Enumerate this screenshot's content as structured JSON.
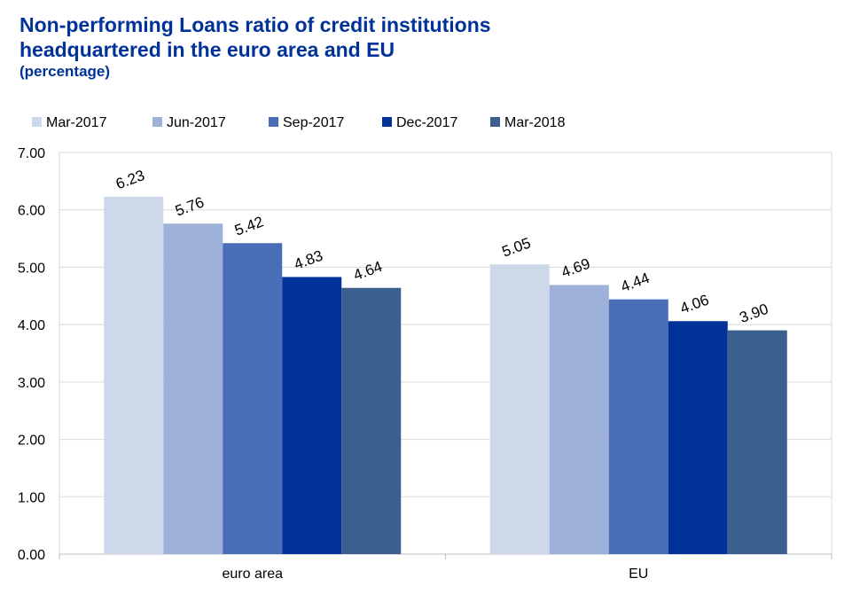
{
  "title": {
    "line1": "Non-performing Loans ratio of credit institutions",
    "line2": "headquartered in the euro area and EU",
    "subtitle": "(percentage)"
  },
  "chart_data": {
    "type": "bar",
    "title": "Non-performing Loans ratio of credit institutions headquartered in the euro area and EU",
    "subtitle": "(percentage)",
    "categories": [
      "euro area",
      "EU"
    ],
    "series": [
      {
        "name": "Mar-2017",
        "color": "#CDD8EA",
        "values": [
          6.23,
          5.05
        ]
      },
      {
        "name": "Jun-2017",
        "color": "#9EB1D8",
        "values": [
          5.76,
          4.69
        ]
      },
      {
        "name": "Sep-2017",
        "color": "#4A6DB8",
        "values": [
          5.42,
          4.44
        ]
      },
      {
        "name": "Dec-2017",
        "color": "#003299",
        "values": [
          4.83,
          4.06
        ]
      },
      {
        "name": "Mar-2018",
        "color": "#3B5F8F",
        "values": [
          4.64,
          3.9
        ]
      }
    ],
    "ylim": [
      0,
      7
    ],
    "yticks": [
      "0.00",
      "1.00",
      "2.00",
      "3.00",
      "4.00",
      "5.00",
      "6.00",
      "7.00"
    ],
    "xlabel": "",
    "ylabel": "",
    "grid": true,
    "legend_position": "top-left",
    "data_labels_rotated": true
  }
}
